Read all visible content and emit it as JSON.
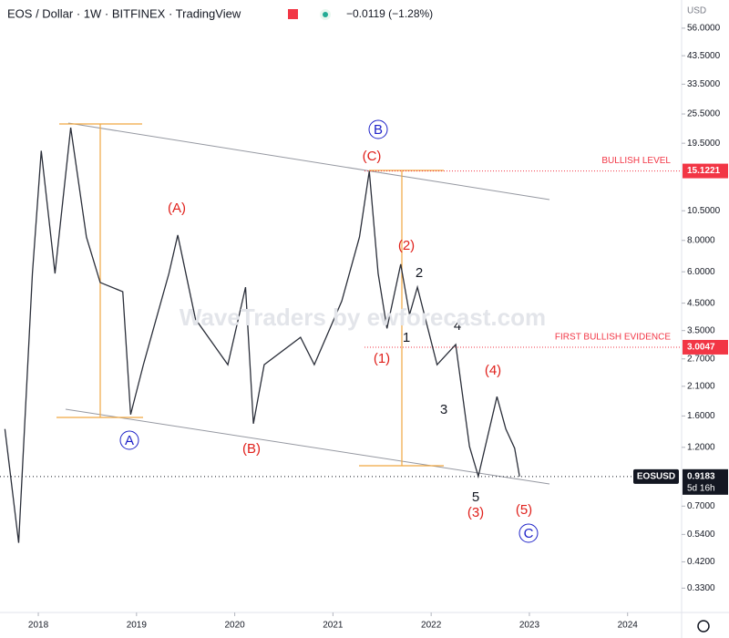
{
  "chart_data": {
    "type": "line",
    "title": "EOS / Dollar · 1W · BITFINEX · TradingView",
    "change": "−0.0119 (−1.28%)",
    "currency": "USD",
    "watermark": "WaveTraders by ewforecast.com",
    "log_scale": true,
    "grid": false,
    "xlim": [
      2017.61,
      2024.55
    ],
    "xticks": [
      2018,
      2019,
      2020,
      2021,
      2022,
      2023,
      2024
    ],
    "ylim": [
      0.264,
      72.5
    ],
    "yticks": [
      {
        "value": 56,
        "label": "56.0000"
      },
      {
        "value": 43.5,
        "label": "43.5000"
      },
      {
        "value": 33.5,
        "label": "33.5000"
      },
      {
        "value": 25.5,
        "label": "25.5000"
      },
      {
        "value": 19.5,
        "label": "19.5000"
      },
      {
        "value": 10.5,
        "label": "10.5000"
      },
      {
        "value": 8,
        "label": "8.0000"
      },
      {
        "value": 6,
        "label": "6.0000"
      },
      {
        "value": 4.5,
        "label": "4.5000"
      },
      {
        "value": 3.5,
        "label": "3.5000"
      },
      {
        "value": 2.7,
        "label": "2.7000"
      },
      {
        "value": 2.1,
        "label": "2.1000"
      },
      {
        "value": 1.6,
        "label": "1.6000"
      },
      {
        "value": 1.2,
        "label": "1.2000"
      },
      {
        "value": 0.7,
        "label": "0.7000"
      },
      {
        "value": 0.54,
        "label": "0.5400"
      },
      {
        "value": 0.42,
        "label": "0.4200"
      },
      {
        "value": 0.33,
        "label": "0.3300"
      }
    ],
    "series": [
      {
        "name": "EOSUSD",
        "color": "#2a2e39",
        "x": [
          2017.66,
          2017.8,
          2017.94,
          2018.03,
          2018.17,
          2018.33,
          2018.49,
          2018.63,
          2018.86,
          2018.94,
          2019.07,
          2019.33,
          2019.42,
          2019.6,
          2019.93,
          2020.11,
          2020.19,
          2020.3,
          2020.67,
          2020.81,
          2021.09,
          2021.27,
          2021.37,
          2021.46,
          2021.55,
          2021.69,
          2021.78,
          2021.86,
          2022.06,
          2022.25,
          2022.39,
          2022.48,
          2022.67,
          2022.76,
          2022.85,
          2022.9
        ],
        "values": [
          1.42,
          0.5,
          5.91,
          18.2,
          5.91,
          22.5,
          8.25,
          5.44,
          5.0,
          1.62,
          2.56,
          5.91,
          8.4,
          3.89,
          2.56,
          5.21,
          1.49,
          2.56,
          3.29,
          2.56,
          4.59,
          8.25,
          15.1,
          5.91,
          3.57,
          6.43,
          4.05,
          5.21,
          2.56,
          3.08,
          1.21,
          0.92,
          1.91,
          1.42,
          1.19,
          0.9183
        ]
      }
    ],
    "last": {
      "symbol": "EOSUSD",
      "value": 0.9183,
      "countdown": "5d 16h"
    },
    "levels": [
      {
        "label": "BULLISH LEVEL",
        "value": 15.1221
      },
      {
        "label": "FIRST BULLISH EVIDENCE",
        "value": 3.0047
      }
    ],
    "annotations": [
      "(C)",
      "B",
      "(A)",
      "A",
      "(B)",
      "(2)",
      "2",
      "1",
      "(1)",
      "4",
      "3",
      "(4)",
      "5",
      "(3)",
      "(5)",
      "C"
    ]
  }
}
